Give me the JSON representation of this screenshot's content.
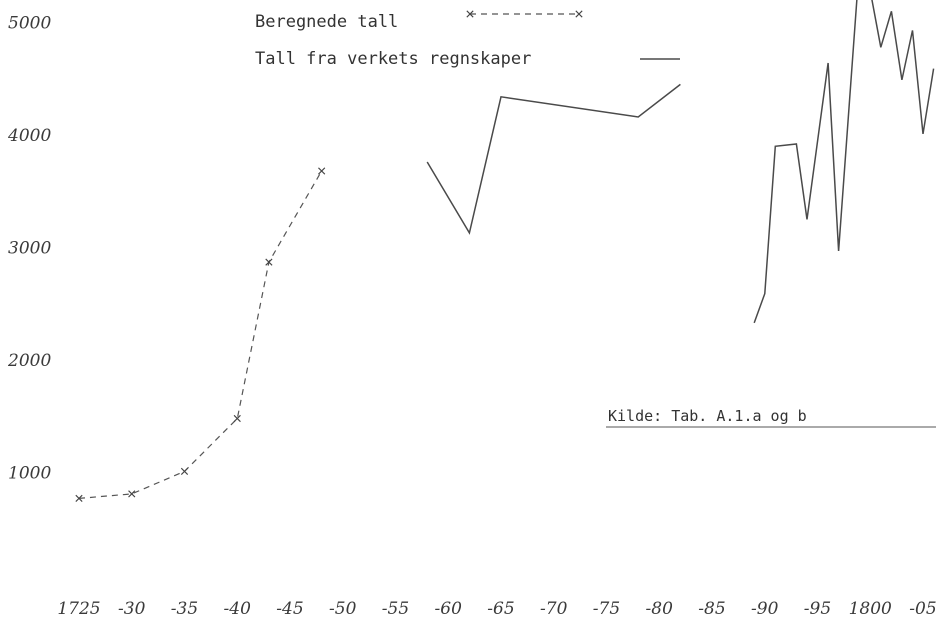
{
  "chart_data": {
    "type": "line",
    "title": "",
    "xlabel": "",
    "ylabel": "",
    "xlim": [
      1725,
      1905
    ],
    "ylim": [
      0,
      5200
    ],
    "grid": false,
    "legend_position": "top-center",
    "y_ticks": [
      {
        "value": 5000,
        "label": "5000"
      },
      {
        "value": 4000,
        "label": "4000"
      },
      {
        "value": 3000,
        "label": "3000"
      },
      {
        "value": 2000,
        "label": "2000"
      },
      {
        "value": 1000,
        "label": "1000"
      }
    ],
    "x_ticks": [
      {
        "value": 1725,
        "label": "1725"
      },
      {
        "value": 1730,
        "label": "-30"
      },
      {
        "value": 1735,
        "label": "-35"
      },
      {
        "value": 1740,
        "label": "-40"
      },
      {
        "value": 1745,
        "label": "-45"
      },
      {
        "value": 1750,
        "label": "-50"
      },
      {
        "value": 1755,
        "label": "-55"
      },
      {
        "value": 1760,
        "label": "-60"
      },
      {
        "value": 1765,
        "label": "-65"
      },
      {
        "value": 1770,
        "label": "-70"
      },
      {
        "value": 1775,
        "label": "-75"
      },
      {
        "value": 1780,
        "label": "-80"
      },
      {
        "value": 1785,
        "label": "-85"
      },
      {
        "value": 1790,
        "label": "-90"
      },
      {
        "value": 1795,
        "label": "-95"
      },
      {
        "value": 1800,
        "label": "1800"
      },
      {
        "value": 1805,
        "label": "-05"
      }
    ],
    "series": [
      {
        "name": "Beregnede tall",
        "style": "dashed-cross",
        "color": "#555555",
        "points": [
          {
            "x": 1725,
            "y": 770
          },
          {
            "x": 1730,
            "y": 810
          },
          {
            "x": 1735,
            "y": 1010
          },
          {
            "x": 1740,
            "y": 1480
          },
          {
            "x": 1743,
            "y": 2870
          },
          {
            "x": 1748,
            "y": 3680
          }
        ]
      },
      {
        "name": "Tall fra verkets regnskaper",
        "style": "solid",
        "color": "#4a4a4a",
        "segments": [
          [
            {
              "x": 1758,
              "y": 3760
            },
            {
              "x": 1762,
              "y": 3130
            },
            {
              "x": 1765,
              "y": 4340
            },
            {
              "x": 1778,
              "y": 4160
            },
            {
              "x": 1782,
              "y": 4450
            }
          ],
          [
            {
              "x": 1789,
              "y": 2330
            },
            {
              "x": 1790,
              "y": 2590
            },
            {
              "x": 1791,
              "y": 3900
            },
            {
              "x": 1793,
              "y": 3920
            },
            {
              "x": 1794,
              "y": 3250
            },
            {
              "x": 1796,
              "y": 4640
            },
            {
              "x": 1797,
              "y": 2970
            },
            {
              "x": 1799,
              "y": 5550
            },
            {
              "x": 1800,
              "y": 5280
            },
            {
              "x": 1801,
              "y": 4780
            },
            {
              "x": 1802,
              "y": 5100
            },
            {
              "x": 1803,
              "y": 4490
            },
            {
              "x": 1804,
              "y": 4930
            },
            {
              "x": 1805,
              "y": 4010
            },
            {
              "x": 1806,
              "y": 4590
            }
          ]
        ]
      }
    ],
    "annotations": [
      {
        "text": "Kilde: Tab. A.1.a og b",
        "position": "right-middle",
        "underlined": true
      }
    ]
  }
}
